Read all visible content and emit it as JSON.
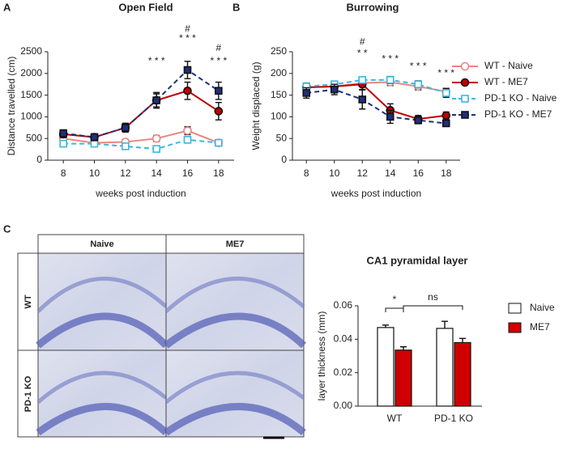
{
  "panel_labels": [
    "A",
    "B",
    "C"
  ],
  "histology": {
    "columns": [
      "Naive",
      "ME7"
    ],
    "rows": [
      "WT",
      "PD-1 KO"
    ]
  },
  "chart_data": [
    {
      "type": "line",
      "title": "Open Field",
      "xlabel": "weeks post induction",
      "ylabel": "Distance travelled (cm)",
      "x": [
        8,
        10,
        12,
        14,
        16,
        18
      ],
      "xlim": [
        7,
        19
      ],
      "xticks": [
        8,
        10,
        12,
        14,
        16,
        18
      ],
      "ylim": [
        0,
        2500
      ],
      "yticks": [
        0,
        500,
        1000,
        1500,
        2000,
        2500
      ],
      "series": [
        {
          "color": "#e8877f",
          "marker": "circle",
          "filled": false,
          "dashed": false,
          "values": [
            500,
            400,
            420,
            500,
            680,
            400
          ],
          "errors": [
            60,
            50,
            60,
            70,
            90,
            60
          ]
        },
        {
          "color": "#c00000",
          "marker": "circle",
          "filled": true,
          "dashed": false,
          "values": [
            600,
            530,
            750,
            1380,
            1600,
            1130
          ],
          "errors": [
            80,
            80,
            100,
            180,
            200,
            200
          ]
        },
        {
          "color": "#3ab7e0",
          "marker": "square",
          "filled": false,
          "dashed": true,
          "values": [
            380,
            380,
            320,
            260,
            470,
            400
          ],
          "errors": [
            50,
            50,
            50,
            40,
            60,
            60
          ]
        },
        {
          "color": "#1f2f7a",
          "marker": "square",
          "filled": true,
          "dashed": true,
          "values": [
            620,
            530,
            750,
            1380,
            2080,
            1600
          ],
          "errors": [
            80,
            80,
            100,
            150,
            200,
            200
          ]
        }
      ],
      "annotations": [
        {
          "x": 14,
          "y": 2276,
          "text": "* * *"
        },
        {
          "x": 16,
          "y": 2800,
          "text": "* * *"
        },
        {
          "x": 16,
          "y": 3020,
          "text": "#"
        },
        {
          "x": 18,
          "y": 2276,
          "text": "* * *"
        },
        {
          "x": 18,
          "y": 2575,
          "text": "#"
        }
      ]
    },
    {
      "type": "line",
      "title": "Burrowing",
      "xlabel": "weeks post induction",
      "ylabel": "Weight displaced (g)",
      "x": [
        8,
        10,
        12,
        14,
        16,
        18
      ],
      "xlim": [
        7,
        19
      ],
      "xticks": [
        8,
        10,
        12,
        14,
        16,
        18
      ],
      "ylim": [
        0,
        250
      ],
      "yticks": [
        0,
        50,
        100,
        150,
        200,
        250
      ],
      "series": [
        {
          "name": "WT - Naive",
          "color": "#e8877f",
          "marker": "circle",
          "filled": false,
          "dashed": false,
          "values": [
            168,
            170,
            178,
            180,
            170,
            158
          ],
          "errors": [
            8,
            8,
            8,
            8,
            8,
            8
          ]
        },
        {
          "name": "WT - ME7",
          "color": "#c00000",
          "marker": "circle",
          "filled": true,
          "dashed": false,
          "values": [
            168,
            170,
            175,
            115,
            95,
            103
          ],
          "errors": [
            10,
            10,
            12,
            15,
            8,
            8
          ]
        },
        {
          "name": "PD-1 KO - Naive",
          "color": "#3ab7e0",
          "marker": "square",
          "filled": false,
          "dashed": true,
          "values": [
            170,
            175,
            185,
            185,
            175,
            155
          ],
          "errors": [
            6,
            6,
            6,
            8,
            8,
            10
          ]
        },
        {
          "name": "PD-1 KO - ME7",
          "color": "#1f2f7a",
          "marker": "square",
          "filled": true,
          "dashed": true,
          "values": [
            155,
            163,
            140,
            100,
            92,
            85
          ],
          "errors": [
            12,
            12,
            22,
            15,
            8,
            5
          ]
        }
      ],
      "annotations": [
        {
          "x": 12,
          "y": 272,
          "text": "#"
        },
        {
          "x": 12,
          "y": 246,
          "text": "* *"
        },
        {
          "x": 14,
          "y": 233,
          "text": "* * *"
        },
        {
          "x": 16,
          "y": 216,
          "text": "* * *"
        },
        {
          "x": 18,
          "y": 200,
          "text": "* * *"
        }
      ]
    },
    {
      "type": "bar",
      "title": "CA1 pyramidal layer",
      "ylabel": "layer thickness (mm)",
      "categories": [
        "WT",
        "PD-1 KO"
      ],
      "ylim": [
        0,
        0.06
      ],
      "yticks": [
        {
          "value": 0,
          "label": "0.00"
        },
        {
          "value": 0.02,
          "label": "0.02"
        },
        {
          "value": 0.04,
          "label": "0.04"
        },
        {
          "value": 0.06,
          "label": "0.06"
        }
      ],
      "series": [
        {
          "name": "Naive",
          "color": "#ffffff",
          "values": [
            0.047,
            0.0465
          ],
          "errors": [
            0.0015,
            0.0042
          ]
        },
        {
          "name": "ME7",
          "color": "#d00000",
          "values": [
            0.0335,
            0.038
          ],
          "errors": [
            0.002,
            0.0025
          ]
        }
      ],
      "annotations": [
        {
          "text": "*"
        },
        {
          "text": "ns"
        }
      ]
    }
  ]
}
